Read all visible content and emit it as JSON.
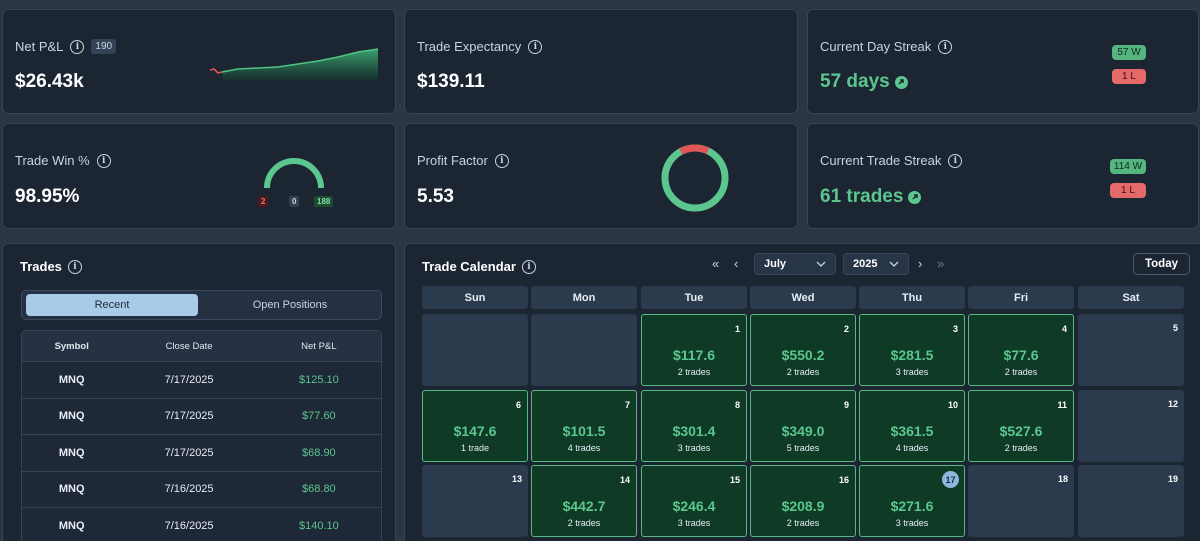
{
  "stats": {
    "net_pnl": {
      "label": "Net P&L",
      "count": "190",
      "value": "$26.43k"
    },
    "expectancy": {
      "label": "Trade Expectancy",
      "value": "$139.11"
    },
    "day_streak": {
      "label": "Current Day Streak",
      "value": "57 days",
      "wins": "57 W",
      "losses": "1 L"
    },
    "win_pct": {
      "label": "Trade Win %",
      "value": "98.95%",
      "losses": "2",
      "breakeven": "0",
      "wins": "188",
      "win_fraction": 0.9895
    },
    "profit_factor": {
      "label": "Profit Factor",
      "value": "5.53"
    },
    "trade_streak": {
      "label": "Current Trade Streak",
      "value": "61 trades",
      "wins": "114 W",
      "losses": "1 L"
    }
  },
  "trades": {
    "title": "Trades",
    "tabs": [
      "Recent",
      "Open Positions"
    ],
    "columns": [
      "Symbol",
      "Close Date",
      "Net P&L"
    ],
    "rows": [
      [
        "MNQ",
        "7/17/2025",
        "$125.10"
      ],
      [
        "MNQ",
        "7/17/2025",
        "$77.60"
      ],
      [
        "MNQ",
        "7/17/2025",
        "$68.90"
      ],
      [
        "MNQ",
        "7/16/2025",
        "$68.80"
      ],
      [
        "MNQ",
        "7/16/2025",
        "$140.10"
      ]
    ]
  },
  "calendar": {
    "title": "Trade Calendar",
    "month": "July",
    "year": "2025",
    "today_label": "Today",
    "weekdays": [
      "Sun",
      "Mon",
      "Tue",
      "Wed",
      "Thu",
      "Fri",
      "Sat"
    ],
    "today": 17,
    "weeks": [
      [
        null,
        null,
        {
          "d": 1,
          "p": "$117.6",
          "t": "2 trades"
        },
        {
          "d": 2,
          "p": "$550.2",
          "t": "2 trades"
        },
        {
          "d": 3,
          "p": "$281.5",
          "t": "3 trades"
        },
        {
          "d": 4,
          "p": "$77.6",
          "t": "2 trades"
        },
        {
          "d": 5
        }
      ],
      [
        {
          "d": 6,
          "p": "$147.6",
          "t": "1 trade"
        },
        {
          "d": 7,
          "p": "$101.5",
          "t": "4 trades"
        },
        {
          "d": 8,
          "p": "$301.4",
          "t": "3 trades"
        },
        {
          "d": 9,
          "p": "$349.0",
          "t": "5 trades"
        },
        {
          "d": 10,
          "p": "$361.5",
          "t": "4 trades"
        },
        {
          "d": 11,
          "p": "$527.6",
          "t": "2 trades"
        },
        {
          "d": 12
        }
      ],
      [
        {
          "d": 13
        },
        {
          "d": 14,
          "p": "$442.7",
          "t": "2 trades"
        },
        {
          "d": 15,
          "p": "$246.4",
          "t": "3 trades"
        },
        {
          "d": 16,
          "p": "$208.9",
          "t": "2 trades"
        },
        {
          "d": 17,
          "p": "$271.6",
          "t": "3 trades"
        },
        {
          "d": 18
        },
        {
          "d": 19
        }
      ]
    ]
  }
}
